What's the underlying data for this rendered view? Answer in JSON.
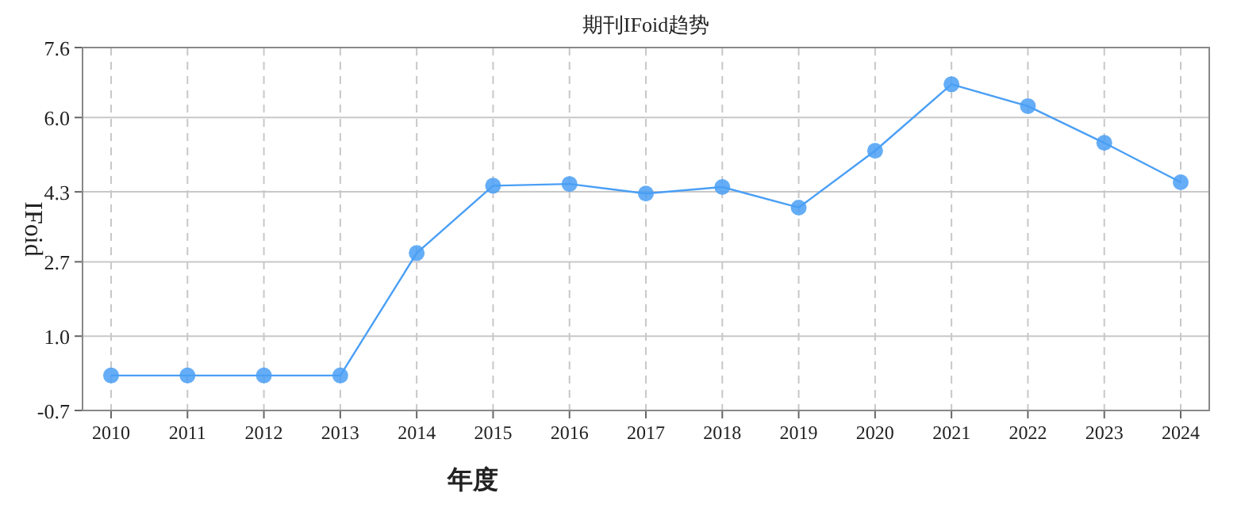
{
  "chart_data": {
    "type": "line",
    "title": "期刊IFoid趋势",
    "xlabel": "年度",
    "ylabel": "IFoid",
    "categories": [
      "2010",
      "2011",
      "2012",
      "2013",
      "2014",
      "2015",
      "2016",
      "2017",
      "2018",
      "2019",
      "2020",
      "2021",
      "2022",
      "2023",
      "2024"
    ],
    "series": [
      {
        "color": "#4a9ff5",
        "values": [
          0.1,
          0.1,
          0.1,
          0.1,
          2.9,
          4.44,
          4.48,
          4.26,
          4.41,
          3.94,
          5.24,
          6.76,
          6.26,
          5.42,
          4.52
        ]
      }
    ],
    "ylim": [
      -0.7,
      7.6
    ],
    "yticks": [
      -0.7,
      {
        "value": 1,
        "label": "1.0"
      },
      2.7,
      4.3,
      {
        "value": 6,
        "label": "6.0"
      },
      7.6
    ],
    "grid": true,
    "marker": "circle",
    "line_style": "solid"
  }
}
